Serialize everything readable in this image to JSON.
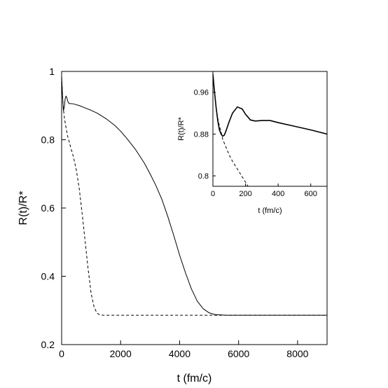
{
  "chart_data": [
    {
      "id": "main",
      "type": "line",
      "xlabel": "t (fm/c)",
      "ylabel": "R(t)/R*",
      "xlim": [
        0,
        9000
      ],
      "ylim": [
        0.2,
        1.0
      ],
      "xticks": [
        0,
        2000,
        4000,
        6000,
        8000
      ],
      "yticks": [
        0.2,
        0.4,
        0.6,
        0.8,
        1.0
      ],
      "xtick_labels": [
        "0",
        "2000",
        "4000",
        "6000",
        "8000"
      ],
      "ytick_labels": [
        "0.2",
        "0.4",
        "0.6",
        "0.8",
        "1"
      ],
      "grid": false,
      "series": [
        {
          "style": "solid",
          "x": [
            0,
            30,
            60,
            90,
            120,
            150,
            180,
            210,
            250,
            300,
            400,
            600,
            800,
            1000,
            1200,
            1500,
            1800,
            2000,
            2200,
            2500,
            2800,
            3000,
            3200,
            3400,
            3600,
            3800,
            4000,
            4200,
            4400,
            4600,
            4800,
            5000,
            5200,
            5400,
            5600,
            6000,
            7000,
            8000,
            9000
          ],
          "y": [
            0.985,
            0.93,
            0.885,
            0.895,
            0.92,
            0.928,
            0.922,
            0.912,
            0.906,
            0.906,
            0.905,
            0.9,
            0.893,
            0.886,
            0.878,
            0.862,
            0.842,
            0.825,
            0.805,
            0.772,
            0.732,
            0.7,
            0.665,
            0.625,
            0.575,
            0.52,
            0.462,
            0.41,
            0.363,
            0.327,
            0.305,
            0.293,
            0.288,
            0.287,
            0.286,
            0.286,
            0.286,
            0.286,
            0.286
          ]
        },
        {
          "style": "dashed",
          "x": [
            0,
            30,
            60,
            100,
            150,
            200,
            300,
            400,
            500,
            600,
            700,
            800,
            900,
            1000,
            1100,
            1200,
            1300,
            1400,
            1500,
            2000,
            4000,
            6000,
            8000,
            9000
          ],
          "y": [
            0.985,
            0.93,
            0.89,
            0.86,
            0.835,
            0.812,
            0.78,
            0.75,
            0.71,
            0.655,
            0.58,
            0.5,
            0.42,
            0.35,
            0.31,
            0.292,
            0.287,
            0.286,
            0.286,
            0.286,
            0.286,
            0.286,
            0.286,
            0.286
          ]
        }
      ]
    },
    {
      "id": "inset",
      "type": "line",
      "xlabel": "t (fm/c)",
      "ylabel": "R(t)/R*",
      "xlim": [
        0,
        700
      ],
      "ylim": [
        0.78,
        1.0
      ],
      "xticks": [
        0,
        200,
        400,
        600
      ],
      "yticks": [
        0.8,
        0.88,
        0.96
      ],
      "xtick_labels": [
        "0",
        "200",
        "400",
        "600"
      ],
      "ytick_labels": [
        "0.8",
        "0.88",
        "0.96"
      ],
      "grid": false,
      "series": [
        {
          "style": "solid",
          "x": [
            0,
            10,
            20,
            30,
            40,
            50,
            60,
            70,
            80,
            100,
            120,
            150,
            180,
            200,
            230,
            260,
            300,
            350,
            400,
            500,
            600,
            700
          ],
          "y": [
            0.995,
            0.96,
            0.93,
            0.905,
            0.888,
            0.88,
            0.876,
            0.878,
            0.886,
            0.904,
            0.92,
            0.932,
            0.928,
            0.918,
            0.907,
            0.905,
            0.906,
            0.906,
            0.902,
            0.895,
            0.888,
            0.88
          ]
        },
        {
          "style": "dashed",
          "x": [
            0,
            10,
            20,
            30,
            40,
            50,
            60,
            80,
            100,
            120,
            140,
            160,
            180,
            200,
            215
          ],
          "y": [
            0.995,
            0.96,
            0.93,
            0.91,
            0.895,
            0.885,
            0.87,
            0.855,
            0.84,
            0.828,
            0.818,
            0.808,
            0.798,
            0.788,
            0.78
          ]
        }
      ]
    }
  ]
}
